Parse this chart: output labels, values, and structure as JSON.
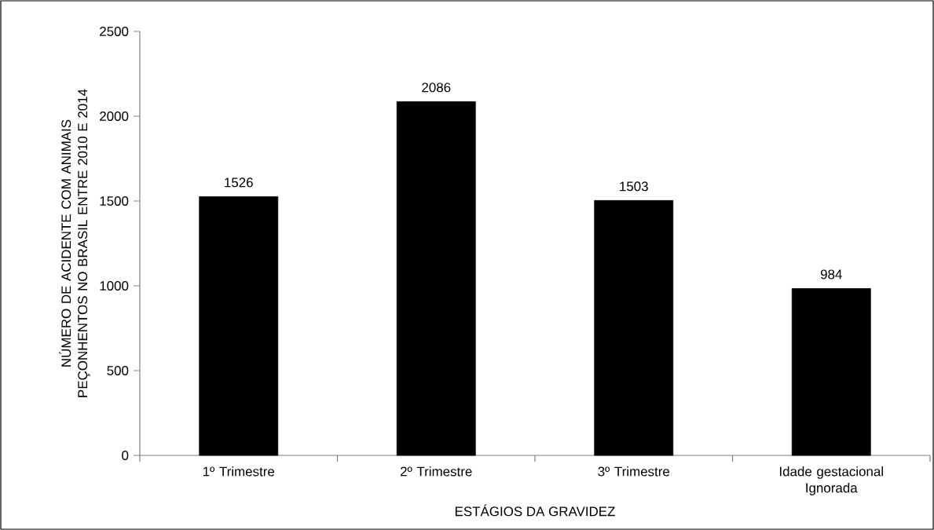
{
  "chart_data": {
    "type": "bar",
    "xlabel": "ESTÁGIOS DA GRAVIDEZ",
    "ylabel": "NÚMERO DE ACIDENTE COM ANIMAIS PEÇONHENTOS NO BRASIL ENTRE 2010 E 2014",
    "categories": [
      "1º Trimestre",
      "2º Trimestre",
      "3º Trimestre",
      "Idade gestacional Ignorada"
    ],
    "values": [
      1526,
      2086,
      1503,
      984
    ],
    "color": "#000000",
    "ylim": [
      0,
      2500
    ],
    "yticks": [
      0,
      500,
      1000,
      1500,
      2000,
      2500
    ],
    "data_labels": true,
    "grid": false
  }
}
